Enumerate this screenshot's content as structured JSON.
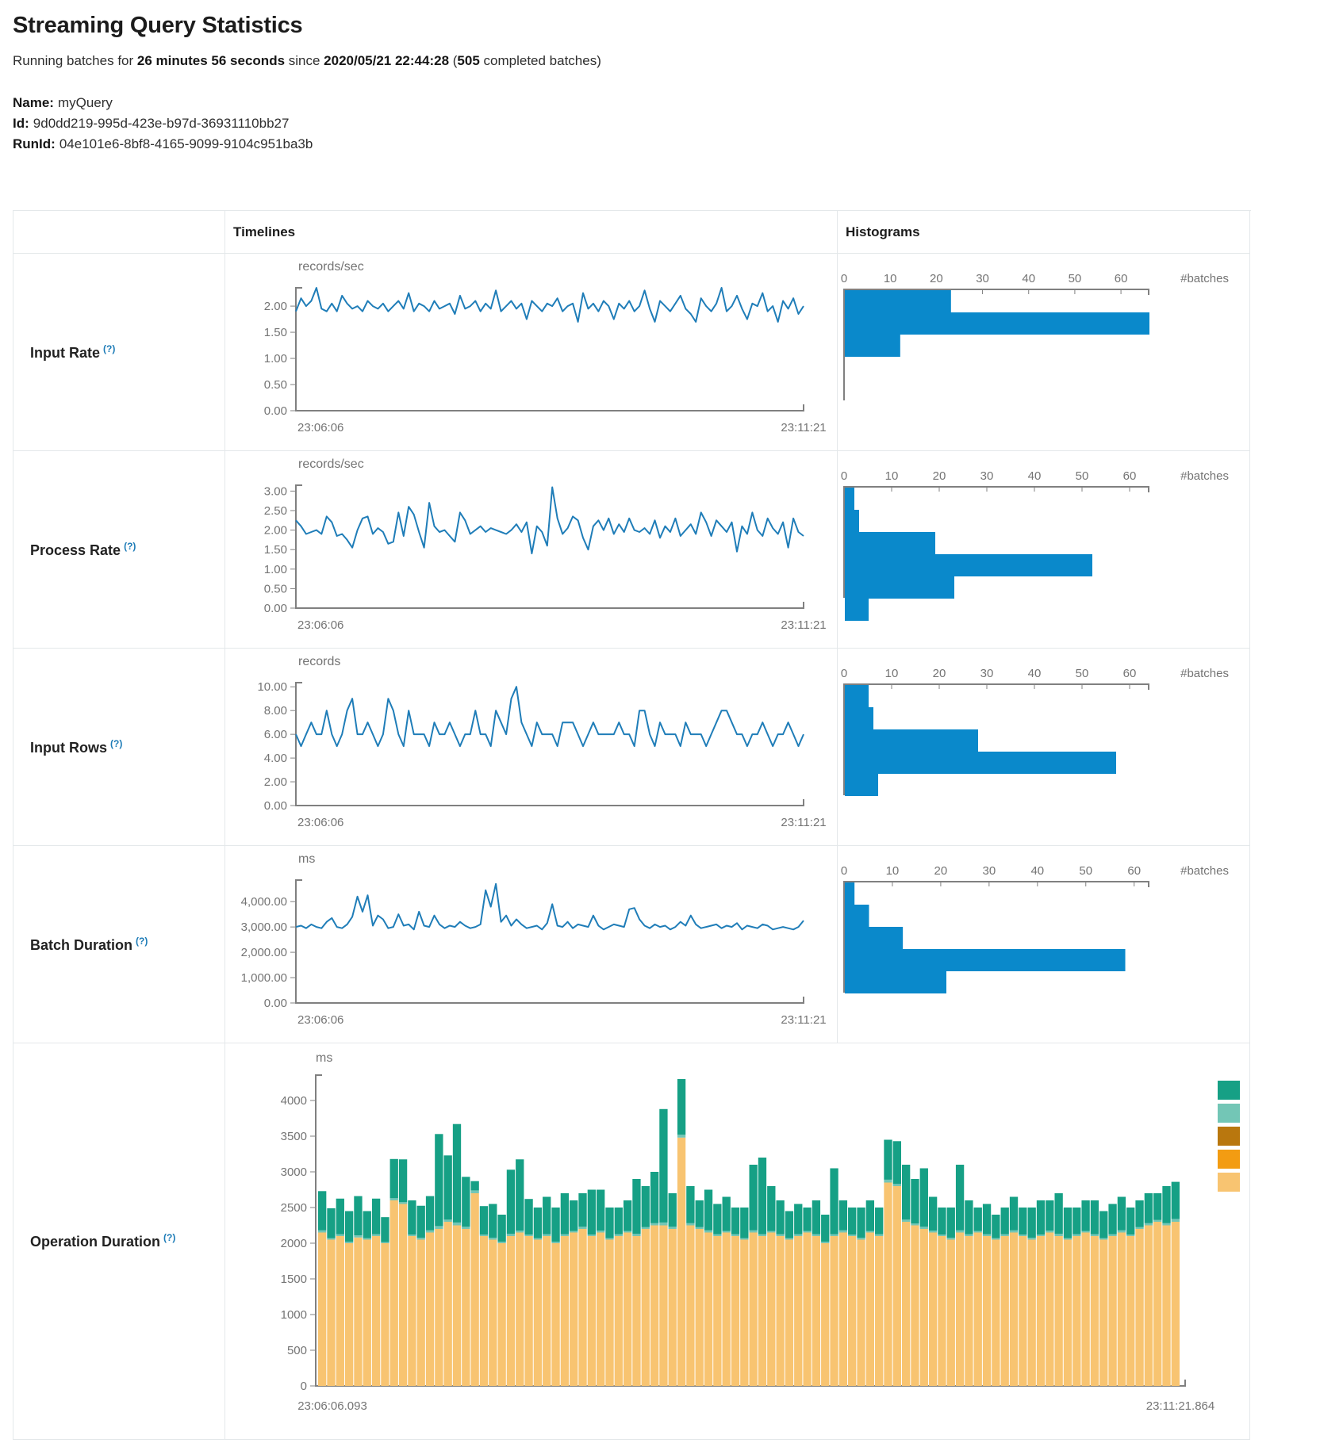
{
  "header": {
    "title": "Streaming Query Statistics",
    "running_prefix": "Running batches for ",
    "duration": "26 minutes 56 seconds",
    "since": " since ",
    "timestamp": "2020/05/21 22:44:28",
    "paren_open": " (",
    "batch_count": "505",
    "paren_close": " completed batches)"
  },
  "meta": {
    "name_label": "Name:",
    "name_value": "myQuery",
    "id_label": "Id:",
    "id_value": "9d0dd219-995d-423e-b97d-36931110bb27",
    "runid_label": "RunId:",
    "runid_value": "04e101e6-8bf8-4165-9099-9104c951ba3b"
  },
  "table": {
    "timelines_header": "Timelines",
    "histograms_header": "Histograms",
    "rows": [
      {
        "label": "Input Rate",
        "help": "(?)"
      },
      {
        "label": "Process Rate",
        "help": "(?)"
      },
      {
        "label": "Input Rows",
        "help": "(?)"
      },
      {
        "label": "Batch Duration",
        "help": "(?)"
      },
      {
        "label": "Operation Duration",
        "help": "(?)"
      }
    ]
  },
  "colors": {
    "line": "#1f7db8",
    "histogram": "#0a89cb",
    "axis": "#808080",
    "tick_text": "#747474"
  },
  "chart_data": {
    "input_rate_timeline": {
      "type": "line",
      "unit": "records/sec",
      "color": "#1f7db8",
      "x_start": "23:06:06",
      "x_end": "23:11:21",
      "ymax": 2.35,
      "yticks": {
        "values": [
          0,
          0.5,
          1,
          1.5,
          2
        ],
        "labels": [
          "0.00",
          "0.50",
          "1.00",
          "1.50",
          "2.00"
        ]
      },
      "values": [
        1.9,
        2.15,
        2.0,
        2.1,
        2.35,
        1.95,
        1.9,
        2.05,
        1.9,
        2.2,
        2.05,
        1.95,
        2.0,
        1.9,
        2.1,
        2.0,
        1.95,
        2.05,
        1.9,
        2.0,
        2.1,
        1.95,
        2.25,
        1.9,
        2.05,
        2.0,
        1.9,
        2.1,
        1.95,
        2.0,
        2.05,
        1.85,
        2.2,
        1.95,
        2.0,
        2.1,
        1.9,
        2.05,
        1.95,
        2.3,
        1.9,
        2.0,
        2.1,
        1.95,
        2.05,
        1.75,
        2.1,
        2.0,
        1.9,
        2.05,
        2.0,
        2.15,
        1.9,
        2.0,
        2.05,
        1.7,
        2.25,
        1.95,
        2.05,
        1.9,
        2.1,
        2.0,
        1.75,
        2.05,
        1.95,
        2.1,
        1.9,
        2.0,
        2.3,
        1.95,
        1.7,
        2.1,
        2.0,
        1.9,
        2.05,
        2.2,
        1.95,
        1.85,
        1.7,
        2.15,
        2.0,
        1.9,
        2.05,
        2.35,
        1.9,
        2.0,
        2.2,
        1.95,
        1.75,
        2.05,
        2.0,
        2.25,
        1.9,
        2.0,
        1.7,
        2.1,
        1.95,
        2.15,
        1.85,
        2.0
      ]
    },
    "input_rate_hist": {
      "type": "hbar",
      "color": "#0a89cb",
      "batches_label": "#batches",
      "ticks": [
        0,
        10,
        20,
        30,
        40,
        50,
        60
      ],
      "axis_max": 66,
      "bars": [
        23,
        66,
        12
      ]
    },
    "process_rate_timeline": {
      "type": "line",
      "unit": "records/sec",
      "color": "#1f7db8",
      "x_start": "23:06:06",
      "x_end": "23:11:21",
      "ymax": 3.15,
      "yticks": {
        "values": [
          0,
          0.5,
          1,
          1.5,
          2,
          2.5,
          3
        ],
        "labels": [
          "0.00",
          "0.50",
          "1.00",
          "1.50",
          "2.00",
          "2.50",
          "3.00"
        ]
      },
      "values": [
        2.25,
        2.1,
        1.9,
        1.95,
        2.0,
        1.9,
        2.35,
        2.2,
        1.85,
        1.9,
        1.75,
        1.55,
        2.0,
        2.3,
        2.35,
        1.9,
        2.05,
        1.95,
        1.65,
        1.7,
        2.45,
        1.85,
        2.6,
        2.4,
        1.95,
        1.55,
        2.7,
        2.1,
        1.95,
        2.0,
        1.85,
        1.7,
        2.45,
        2.25,
        1.9,
        2.0,
        2.1,
        1.95,
        2.05,
        2.0,
        1.95,
        1.9,
        2.0,
        2.15,
        1.95,
        2.2,
        1.4,
        2.1,
        1.95,
        1.6,
        3.1,
        2.3,
        1.9,
        2.05,
        2.35,
        2.25,
        1.8,
        1.5,
        2.1,
        2.25,
        2.0,
        2.3,
        1.9,
        2.15,
        1.95,
        2.3,
        2.0,
        1.95,
        2.05,
        1.9,
        2.25,
        1.8,
        2.1,
        1.95,
        2.3,
        1.85,
        2.0,
        2.15,
        1.9,
        2.45,
        2.2,
        1.85,
        2.25,
        2.1,
        1.95,
        2.2,
        1.45,
        2.1,
        1.9,
        2.45,
        2.0,
        1.85,
        2.3,
        2.05,
        1.9,
        2.2,
        1.55,
        2.3,
        1.95,
        1.85
      ]
    },
    "process_rate_hist": {
      "type": "hbar",
      "color": "#0a89cb",
      "batches_label": "#batches",
      "ticks": [
        0,
        10,
        20,
        30,
        40,
        50,
        60
      ],
      "axis_max": 64,
      "bars": [
        2,
        3,
        19,
        52,
        23,
        5
      ]
    },
    "input_rows_timeline": {
      "type": "line",
      "unit": "records",
      "color": "#1f7db8",
      "x_start": "23:06:06",
      "x_end": "23:11:21",
      "ymax": 10.35,
      "yticks": {
        "values": [
          0,
          2,
          4,
          6,
          8,
          10
        ],
        "labels": [
          "0.00",
          "2.00",
          "4.00",
          "6.00",
          "8.00",
          "10.00"
        ]
      },
      "values": [
        6,
        5,
        6,
        7,
        6,
        6,
        8,
        6,
        5,
        6,
        8,
        9,
        6,
        6,
        7,
        6,
        5,
        6,
        9,
        8,
        6,
        5,
        8,
        6,
        6,
        6,
        5,
        7,
        6,
        6,
        7,
        6,
        5,
        6,
        6,
        8,
        6,
        6,
        5,
        8,
        7,
        6,
        9,
        10,
        7,
        6,
        5,
        7,
        6,
        6,
        6,
        5,
        7,
        7,
        7,
        6,
        5,
        6,
        7,
        6,
        6,
        6,
        6,
        7,
        6,
        6,
        5,
        8,
        8,
        6,
        5,
        7,
        6,
        6,
        6,
        5,
        7,
        6,
        6,
        6,
        5,
        6,
        7,
        8,
        8,
        7,
        6,
        6,
        5,
        6,
        6,
        7,
        6,
        5,
        6,
        6,
        7,
        6,
        5,
        6
      ]
    },
    "input_rows_hist": {
      "type": "hbar",
      "color": "#0a89cb",
      "batches_label": "#batches",
      "ticks": [
        0,
        10,
        20,
        30,
        40,
        50,
        60
      ],
      "axis_max": 64,
      "bars": [
        5,
        6,
        28,
        57,
        7
      ]
    },
    "batch_duration_timeline": {
      "type": "line",
      "unit": "ms",
      "color": "#1f7db8",
      "x_start": "23:06:06",
      "x_end": "23:11:21",
      "ymax": 4850,
      "yticks": {
        "values": [
          0,
          1000,
          2000,
          3000,
          4000
        ],
        "labels": [
          "0.00",
          "1,000.00",
          "2,000.00",
          "3,000.00",
          "4,000.00"
        ]
      },
      "values": [
        3000,
        3050,
        2950,
        3100,
        3000,
        2950,
        3200,
        3350,
        3000,
        2950,
        3100,
        3400,
        4200,
        3600,
        4250,
        3050,
        3450,
        3300,
        2950,
        3000,
        3500,
        3050,
        3100,
        2900,
        3600,
        3050,
        3000,
        3450,
        3100,
        2950,
        3050,
        3000,
        3200,
        3050,
        2950,
        3000,
        3100,
        4450,
        3800,
        4700,
        3200,
        3450,
        3050,
        3300,
        3100,
        2950,
        3000,
        3050,
        2900,
        3150,
        3900,
        3050,
        3000,
        3200,
        2950,
        3100,
        3050,
        3000,
        3450,
        3050,
        2900,
        3000,
        3100,
        3050,
        3000,
        3700,
        3750,
        3300,
        3050,
        2950,
        3100,
        3000,
        3050,
        2900,
        3000,
        3200,
        3050,
        3450,
        3100,
        2950,
        3000,
        3050,
        3100,
        2950,
        3050,
        3000,
        3150,
        2900,
        3050,
        3000,
        2950,
        3100,
        3050,
        2900,
        2950,
        3000,
        2950,
        2900,
        3000,
        3250
      ]
    },
    "batch_duration_hist": {
      "type": "hbar",
      "color": "#0a89cb",
      "batches_label": "#batches",
      "ticks": [
        0,
        10,
        20,
        30,
        40,
        50,
        60
      ],
      "axis_max": 63,
      "bars": [
        2,
        5,
        12,
        58,
        21
      ]
    },
    "operation_duration": {
      "type": "stack",
      "unit": "ms",
      "x_start": "23:06:06.093",
      "x_end": "23:11:21.864",
      "ymax": 4350,
      "yticks": {
        "values": [
          0,
          500,
          1000,
          1500,
          2000,
          2500,
          3000,
          3500,
          4000
        ],
        "labels": [
          "0",
          "500",
          "1000",
          "1500",
          "2000",
          "2500",
          "3000",
          "3500",
          "4000"
        ]
      },
      "legend_colors": [
        "#16A085",
        "#73C6B6",
        "#B9770E",
        "#F39C12",
        "#F8C471"
      ],
      "series": [
        {
          "color": "#F8C471",
          "values": [
            2150,
            2050,
            2100,
            2000,
            2080,
            2050,
            2100,
            2000,
            2600,
            2550,
            2100,
            2050,
            2150,
            2200,
            2300,
            2250,
            2200,
            2700,
            2100,
            2050,
            2000,
            2100,
            2150,
            2100,
            2050,
            2100,
            2000,
            2100,
            2150,
            2200,
            2100,
            2150,
            2050,
            2100,
            2150,
            2100,
            2200,
            2250,
            2250,
            2200,
            3480,
            2250,
            2200,
            2150,
            2100,
            2150,
            2100,
            2050,
            2150,
            2100,
            2150,
            2100,
            2050,
            2100,
            2150,
            2100,
            2000,
            2100,
            2150,
            2100,
            2050,
            2150,
            2100,
            2850,
            2800,
            2300,
            2250,
            2200,
            2150,
            2100,
            2050,
            2150,
            2100,
            2150,
            2100,
            2050,
            2100,
            2150,
            2100,
            2050,
            2100,
            2150,
            2100,
            2050,
            2100,
            2150,
            2100,
            2050,
            2100,
            2150,
            2100,
            2200,
            2250,
            2300,
            2250,
            2300
          ]
        },
        {
          "color": "#73C6B6",
          "values": [
            30,
            20,
            25,
            20,
            30,
            20,
            25,
            15,
            30,
            25,
            20,
            25,
            30,
            40,
            30,
            40,
            30,
            40,
            20,
            25,
            20,
            30,
            25,
            20,
            20,
            25,
            20,
            25,
            20,
            30,
            20,
            25,
            20,
            25,
            20,
            30,
            25,
            30,
            40,
            30,
            40,
            30,
            25,
            30,
            25,
            20,
            25,
            20,
            30,
            25,
            20,
            25,
            20,
            25,
            20,
            25,
            20,
            25,
            30,
            20,
            25,
            20,
            25,
            40,
            30,
            30,
            25,
            30,
            25,
            20,
            25,
            30,
            25,
            20,
            25,
            20,
            25,
            30,
            20,
            25,
            20,
            25,
            30,
            20,
            25,
            20,
            25,
            20,
            25,
            30,
            20,
            25,
            30,
            25,
            30,
            40
          ]
        },
        {
          "color": "#16A085",
          "values": [
            550,
            420,
            500,
            430,
            550,
            380,
            500,
            350,
            550,
            600,
            480,
            450,
            480,
            1290,
            900,
            1380,
            700,
            130,
            400,
            475,
            380,
            900,
            1000,
            500,
            430,
            525,
            480,
            575,
            430,
            470,
            630,
            575,
            430,
            375,
            430,
            770,
            575,
            720,
            1590,
            470,
            780,
            520,
            375,
            570,
            425,
            480,
            375,
            430,
            920,
            1075,
            630,
            475,
            380,
            425,
            330,
            475,
            380,
            925,
            420,
            380,
            425,
            430,
            375,
            560,
            600,
            770,
            625,
            820,
            475,
            380,
            425,
            920,
            475,
            330,
            425,
            330,
            375,
            470,
            380,
            425,
            480,
            425,
            570,
            430,
            375,
            430,
            475,
            380,
            425,
            470,
            380,
            375,
            420,
            375,
            520,
            520
          ]
        }
      ]
    }
  }
}
